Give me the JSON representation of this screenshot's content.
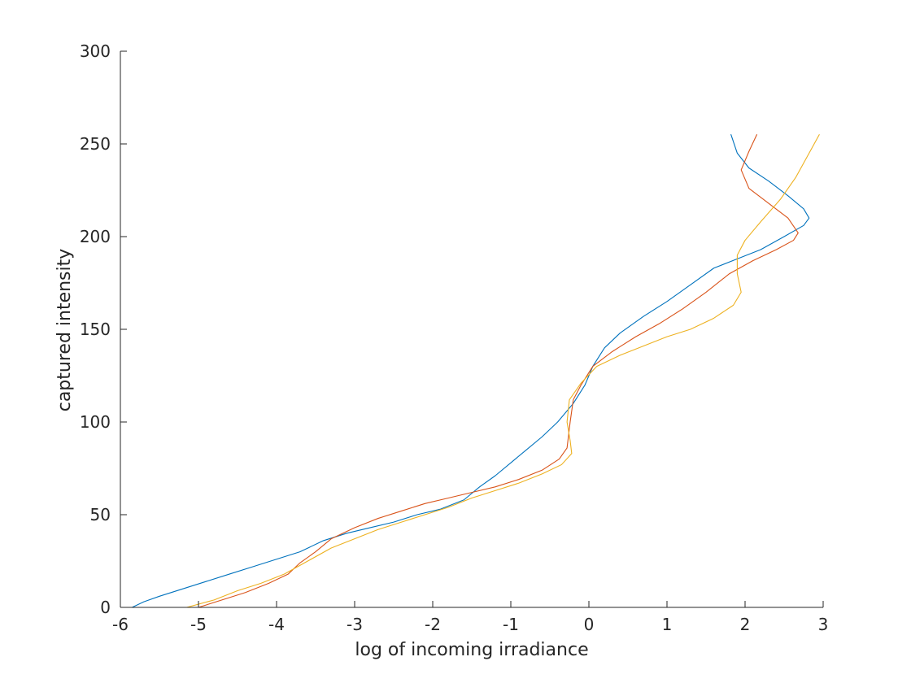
{
  "chart_data": {
    "type": "line",
    "title": "",
    "xlabel": "log of incoming irradiance",
    "ylabel": "captured intensity",
    "xlim": [
      -6,
      3
    ],
    "ylim": [
      0,
      300
    ],
    "xticks": [
      -6,
      -5,
      -4,
      -3,
      -2,
      -1,
      0,
      1,
      2,
      3
    ],
    "yticks": [
      0,
      50,
      100,
      150,
      200,
      250,
      300
    ],
    "grid": false,
    "legend": "none",
    "series": [
      {
        "color": "#0072BD",
        "points": [
          [
            -5.85,
            0
          ],
          [
            -5.7,
            3
          ],
          [
            -5.5,
            6
          ],
          [
            -5.2,
            10
          ],
          [
            -4.9,
            14
          ],
          [
            -4.6,
            18
          ],
          [
            -4.3,
            22
          ],
          [
            -4.0,
            26
          ],
          [
            -3.7,
            30
          ],
          [
            -3.4,
            36
          ],
          [
            -3.1,
            40
          ],
          [
            -2.8,
            43
          ],
          [
            -2.5,
            46
          ],
          [
            -2.2,
            50
          ],
          [
            -1.9,
            53
          ],
          [
            -1.6,
            58
          ],
          [
            -1.4,
            65
          ],
          [
            -1.2,
            71
          ],
          [
            -1.0,
            78
          ],
          [
            -0.8,
            85
          ],
          [
            -0.6,
            92
          ],
          [
            -0.4,
            100
          ],
          [
            -0.2,
            110
          ],
          [
            -0.05,
            120
          ],
          [
            0.05,
            130
          ],
          [
            0.2,
            140
          ],
          [
            0.4,
            148
          ],
          [
            0.7,
            157
          ],
          [
            1.0,
            165
          ],
          [
            1.3,
            174
          ],
          [
            1.6,
            183
          ],
          [
            1.9,
            188
          ],
          [
            2.2,
            193
          ],
          [
            2.5,
            200
          ],
          [
            2.75,
            206
          ],
          [
            2.82,
            210
          ],
          [
            2.75,
            215
          ],
          [
            2.55,
            222
          ],
          [
            2.3,
            230
          ],
          [
            2.05,
            237
          ],
          [
            1.9,
            245
          ],
          [
            1.82,
            255
          ]
        ]
      },
      {
        "color": "#D95319",
        "points": [
          [
            -5.0,
            0
          ],
          [
            -4.7,
            4
          ],
          [
            -4.4,
            8
          ],
          [
            -4.1,
            13
          ],
          [
            -3.85,
            18
          ],
          [
            -3.7,
            24
          ],
          [
            -3.5,
            30
          ],
          [
            -3.3,
            37
          ],
          [
            -3.0,
            43
          ],
          [
            -2.7,
            48
          ],
          [
            -2.4,
            52
          ],
          [
            -2.1,
            56
          ],
          [
            -1.8,
            59
          ],
          [
            -1.5,
            62
          ],
          [
            -1.2,
            65
          ],
          [
            -0.9,
            69
          ],
          [
            -0.6,
            74
          ],
          [
            -0.38,
            80
          ],
          [
            -0.28,
            86
          ],
          [
            -0.24,
            100
          ],
          [
            -0.2,
            112
          ],
          [
            -0.1,
            120
          ],
          [
            0.05,
            130
          ],
          [
            0.3,
            138
          ],
          [
            0.6,
            146
          ],
          [
            0.9,
            153
          ],
          [
            1.2,
            161
          ],
          [
            1.5,
            170
          ],
          [
            1.8,
            180
          ],
          [
            2.1,
            187
          ],
          [
            2.4,
            193
          ],
          [
            2.62,
            198
          ],
          [
            2.68,
            202
          ],
          [
            2.55,
            210
          ],
          [
            2.3,
            218
          ],
          [
            2.05,
            226
          ],
          [
            1.95,
            236
          ],
          [
            2.05,
            246
          ],
          [
            2.15,
            255
          ]
        ]
      },
      {
        "color": "#EDB120",
        "points": [
          [
            -5.15,
            0
          ],
          [
            -4.8,
            4
          ],
          [
            -4.5,
            9
          ],
          [
            -4.2,
            13
          ],
          [
            -3.9,
            18
          ],
          [
            -3.6,
            25
          ],
          [
            -3.3,
            32
          ],
          [
            -3.0,
            37
          ],
          [
            -2.7,
            42
          ],
          [
            -2.4,
            46
          ],
          [
            -2.1,
            50
          ],
          [
            -1.8,
            54
          ],
          [
            -1.5,
            59
          ],
          [
            -1.2,
            63
          ],
          [
            -0.9,
            67
          ],
          [
            -0.6,
            72
          ],
          [
            -0.35,
            77
          ],
          [
            -0.22,
            83
          ],
          [
            -0.24,
            90
          ],
          [
            -0.28,
            100
          ],
          [
            -0.25,
            112
          ],
          [
            -0.1,
            121
          ],
          [
            0.1,
            130
          ],
          [
            0.4,
            136
          ],
          [
            0.7,
            141
          ],
          [
            1.0,
            146
          ],
          [
            1.3,
            150
          ],
          [
            1.6,
            156
          ],
          [
            1.85,
            163
          ],
          [
            1.95,
            170
          ],
          [
            1.9,
            180
          ],
          [
            1.9,
            190
          ],
          [
            2.0,
            198
          ],
          [
            2.2,
            208
          ],
          [
            2.45,
            220
          ],
          [
            2.65,
            232
          ],
          [
            2.82,
            245
          ],
          [
            2.95,
            255
          ]
        ]
      }
    ]
  }
}
